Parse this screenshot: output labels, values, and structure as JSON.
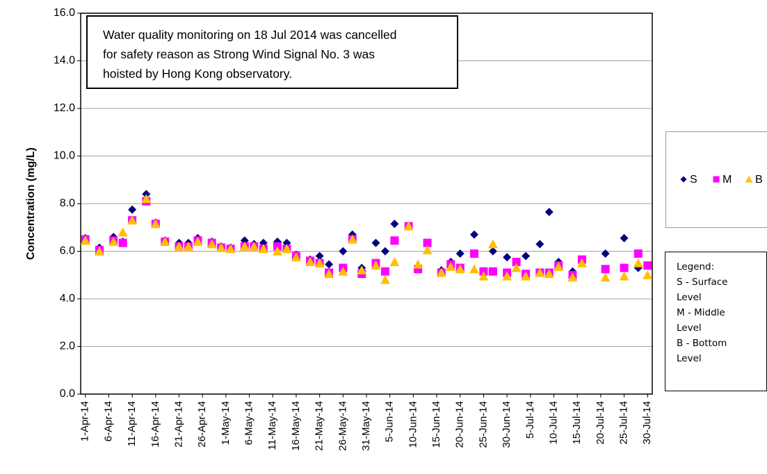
{
  "chart_data": {
    "type": "scatter",
    "y_label": "Concentration (mg/L)",
    "annotation": [
      "Water quality monitoring on 18 Jul 2014 was cancelled",
      "for safety reason as Strong Wind Signal No. 3 was",
      "hoisted by Hong Kong observatory."
    ],
    "legend_note": [
      "Legend:",
      "S - Surface Level",
      "M - Middle Level",
      "B - Bottom Level"
    ],
    "legend": "right",
    "grid": true,
    "x": [
      "1-Apr-14",
      "4-Apr-14",
      "7-Apr-14",
      "9-Apr-14",
      "11-Apr-14",
      "14-Apr-14",
      "16-Apr-14",
      "18-Apr-14",
      "21-Apr-14",
      "23-Apr-14",
      "25-Apr-14",
      "28-Apr-14",
      "30-Apr-14",
      "2-May-14",
      "5-May-14",
      "7-May-14",
      "9-May-14",
      "12-May-14",
      "14-May-14",
      "16-May-14",
      "19-May-14",
      "21-May-14",
      "23-May-14",
      "26-May-14",
      "28-May-14",
      "30-May-14",
      "2-Jun-14",
      "4-Jun-14",
      "6-Jun-14",
      "9-Jun-14",
      "11-Jun-14",
      "13-Jun-14",
      "16-Jun-14",
      "18-Jun-14",
      "20-Jun-14",
      "23-Jun-14",
      "25-Jun-14",
      "27-Jun-14",
      "30-Jun-14",
      "2-Jul-14",
      "4-Jul-14",
      "7-Jul-14",
      "9-Jul-14",
      "11-Jul-14",
      "14-Jul-14",
      "16-Jul-14",
      "21-Jul-14",
      "25-Jul-14",
      "28-Jul-14",
      "30-Jul-14"
    ],
    "series": [
      {
        "name": "S",
        "color": "#000080",
        "marker": "diamond",
        "values": [
          6.55,
          6.15,
          6.6,
          6.4,
          7.75,
          8.4,
          7.2,
          6.45,
          6.35,
          6.35,
          6.55,
          6.4,
          6.2,
          6.15,
          6.45,
          6.3,
          6.35,
          6.4,
          6.35,
          5.85,
          5.65,
          5.8,
          5.45,
          6.0,
          6.7,
          5.3,
          6.35,
          6.0,
          7.15,
          7.05,
          5.3,
          6.3,
          5.2,
          5.55,
          5.9,
          6.7,
          5.15,
          6.0,
          5.75,
          5.5,
          5.8,
          6.3,
          7.65,
          5.55,
          5.15,
          5.65,
          5.9,
          6.55,
          5.3,
          5.4
        ]
      },
      {
        "name": "M",
        "color": "#ff00ff",
        "marker": "square",
        "values": [
          6.5,
          6.05,
          6.45,
          6.35,
          7.3,
          8.1,
          7.15,
          6.4,
          6.2,
          6.2,
          6.45,
          6.35,
          6.15,
          6.1,
          6.2,
          6.2,
          6.1,
          6.2,
          6.1,
          5.8,
          5.6,
          5.5,
          5.1,
          5.3,
          6.5,
          5.05,
          5.5,
          5.15,
          6.45,
          7.05,
          5.25,
          6.35,
          5.1,
          5.45,
          5.3,
          5.9,
          5.15,
          5.15,
          5.1,
          5.55,
          5.05,
          5.1,
          5.1,
          5.4,
          5.0,
          5.65,
          5.25,
          5.3,
          5.9,
          5.4
        ]
      },
      {
        "name": "B",
        "color": "#ffc000",
        "marker": "triangle",
        "values": [
          6.45,
          6.0,
          6.4,
          6.8,
          7.3,
          8.2,
          7.15,
          6.4,
          6.2,
          6.2,
          6.4,
          6.3,
          6.15,
          6.1,
          6.2,
          6.2,
          6.1,
          6.0,
          6.1,
          5.75,
          5.55,
          5.5,
          5.05,
          5.15,
          6.5,
          5.2,
          5.4,
          4.8,
          5.55,
          7.05,
          5.45,
          6.05,
          5.1,
          5.35,
          5.25,
          5.25,
          4.95,
          6.3,
          4.95,
          5.3,
          4.95,
          5.1,
          5.05,
          5.35,
          4.9,
          5.5,
          4.9,
          4.95,
          5.5,
          5.0
        ]
      }
    ],
    "xlim": [
      "31-Mar-14",
      "31-Jul-14"
    ],
    "xticks": [
      "1-Apr-14",
      "6-Apr-14",
      "11-Apr-14",
      "16-Apr-14",
      "21-Apr-14",
      "26-Apr-14",
      "1-May-14",
      "6-May-14",
      "11-May-14",
      "16-May-14",
      "21-May-14",
      "26-May-14",
      "31-May-14",
      "5-Jun-14",
      "10-Jun-14",
      "15-Jun-14",
      "20-Jun-14",
      "25-Jun-14",
      "30-Jun-14",
      "5-Jul-14",
      "10-Jul-14",
      "15-Jul-14",
      "20-Jul-14",
      "25-Jul-14",
      "30-Jul-14"
    ],
    "ylim": [
      0,
      16
    ],
    "yticks": [
      {
        "value": 0,
        "label": "0.0"
      },
      {
        "value": 2,
        "label": "2.0"
      },
      {
        "value": 4,
        "label": "4.0"
      },
      {
        "value": 6,
        "label": "6.0"
      },
      {
        "value": 8,
        "label": "8.0"
      },
      {
        "value": 10,
        "label": "10.0"
      },
      {
        "value": 12,
        "label": "12.0"
      },
      {
        "value": 14,
        "label": "14.0"
      },
      {
        "value": 16,
        "label": "16.0"
      }
    ]
  }
}
